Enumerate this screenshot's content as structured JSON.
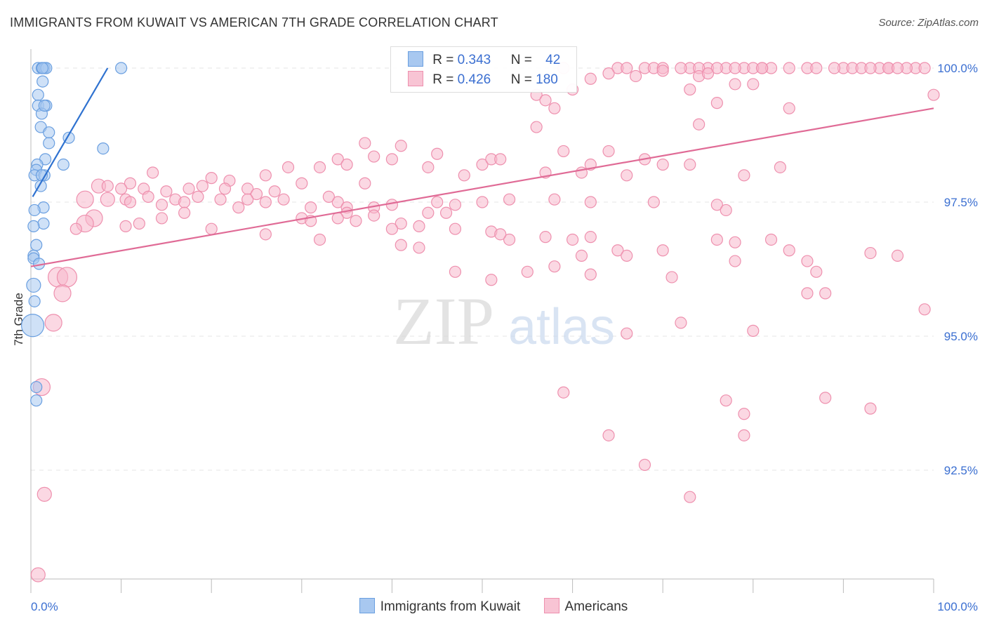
{
  "title": "IMMIGRANTS FROM KUWAIT VS AMERICAN 7TH GRADE CORRELATION CHART",
  "source": "Source: ZipAtlas.com",
  "watermark": {
    "zip": "ZIP",
    "atlas": "atlas"
  },
  "legend": {
    "r_label": "R = ",
    "n_label": "N = ",
    "series": [
      {
        "r": "0.343",
        "n": "42"
      },
      {
        "r": "0.426",
        "n": "180"
      }
    ]
  },
  "bottom_legend": [
    "Immigrants from Kuwait",
    "Americans"
  ],
  "colors": {
    "kuwait_fill": "#a8c8f0",
    "kuwait_stroke": "#6a9fe0",
    "kuwait_line": "#2f72d0",
    "american_fill": "#f8b8cc",
    "american_stroke": "#ee90ae",
    "american_line": "#e06b96",
    "tick_label": "#3b6fd1",
    "grid": "#e4e4e4"
  },
  "chart_data": {
    "type": "scatter",
    "ylabel": "7th Grade",
    "xlim": [
      0,
      100
    ],
    "ylim": [
      90.0,
      100.2
    ],
    "x_tick_labels": [
      {
        "x": 0,
        "label": "0.0%"
      },
      {
        "x": 100,
        "label": "100.0%"
      }
    ],
    "y_ticks": [
      {
        "y": 100.0,
        "label": "100.0%"
      },
      {
        "y": 97.5,
        "label": "97.5%"
      },
      {
        "y": 95.0,
        "label": "95.0%"
      },
      {
        "y": 92.5,
        "label": "92.5%"
      }
    ],
    "grid": true,
    "legend_position": "top-center",
    "series": [
      {
        "name": "Immigrants from Kuwait",
        "trend": [
          [
            0.2,
            97.6
          ],
          [
            8.5,
            100.0
          ]
        ],
        "points": [
          [
            0.8,
            100,
            8
          ],
          [
            1.2,
            100,
            8
          ],
          [
            1.5,
            100,
            8
          ],
          [
            1.7,
            100,
            8
          ],
          [
            1.3,
            100,
            8
          ],
          [
            10,
            100,
            8
          ],
          [
            1.3,
            99.75,
            8
          ],
          [
            0.8,
            99.5,
            8
          ],
          [
            0.8,
            99.3,
            8
          ],
          [
            1.7,
            99.3,
            8
          ],
          [
            1.2,
            99.15,
            8
          ],
          [
            1.5,
            99.3,
            8
          ],
          [
            1.1,
            98.9,
            8
          ],
          [
            2,
            98.8,
            8
          ],
          [
            4.2,
            98.7,
            8
          ],
          [
            2,
            98.6,
            8
          ],
          [
            8,
            98.5,
            8
          ],
          [
            1.6,
            98.3,
            8
          ],
          [
            0.7,
            98.2,
            8
          ],
          [
            3.6,
            98.2,
            8
          ],
          [
            0.6,
            98.1,
            8
          ],
          [
            0.4,
            98.0,
            8
          ],
          [
            1.5,
            98.0,
            8
          ],
          [
            1.2,
            98.0,
            8
          ],
          [
            1.1,
            97.8,
            8
          ],
          [
            1.4,
            97.4,
            8
          ],
          [
            0.4,
            97.35,
            8
          ],
          [
            1.4,
            97.1,
            8
          ],
          [
            0.3,
            97.05,
            8
          ],
          [
            0.6,
            96.7,
            8
          ],
          [
            0.3,
            96.5,
            8
          ],
          [
            0.3,
            96.45,
            8
          ],
          [
            0.9,
            96.35,
            8
          ],
          [
            0.3,
            95.95,
            10
          ],
          [
            0.4,
            95.65,
            8
          ],
          [
            0.2,
            95.2,
            16
          ],
          [
            0.6,
            94.05,
            8
          ],
          [
            0.6,
            93.8,
            8
          ]
        ]
      },
      {
        "name": "Americans",
        "trend": [
          [
            0,
            96.3
          ],
          [
            100,
            99.25
          ]
        ],
        "points": [
          [
            59,
            100,
            8
          ],
          [
            65,
            100,
            8
          ],
          [
            68,
            100,
            8
          ],
          [
            75,
            100,
            8
          ],
          [
            77,
            100,
            8
          ],
          [
            79,
            100,
            8
          ],
          [
            81,
            100,
            8
          ],
          [
            82,
            100,
            8
          ],
          [
            84,
            100,
            8
          ],
          [
            86,
            100,
            8
          ],
          [
            90,
            100,
            8
          ],
          [
            91,
            100,
            8
          ],
          [
            94,
            100,
            8
          ],
          [
            95,
            100,
            8
          ],
          [
            98,
            100,
            8
          ],
          [
            99,
            100,
            8
          ],
          [
            92,
            100,
            8
          ],
          [
            95,
            100,
            8
          ],
          [
            97,
            100,
            8
          ],
          [
            87,
            100,
            8
          ],
          [
            80,
            100,
            8
          ],
          [
            73,
            100,
            8
          ],
          [
            69,
            100,
            8
          ],
          [
            66,
            100,
            8
          ],
          [
            74,
            100,
            8
          ],
          [
            72,
            100,
            8
          ],
          [
            70,
            100,
            8
          ],
          [
            76,
            100,
            8
          ],
          [
            78,
            100,
            8
          ],
          [
            81,
            100,
            8
          ],
          [
            89,
            100,
            8
          ],
          [
            93,
            100,
            8
          ],
          [
            96,
            100,
            8
          ],
          [
            70,
            99.95,
            8
          ],
          [
            64,
            99.9,
            8
          ],
          [
            67,
            99.85,
            8
          ],
          [
            74,
            99.85,
            8
          ],
          [
            75,
            99.9,
            8
          ],
          [
            62,
            99.8,
            8
          ],
          [
            78,
            99.7,
            8
          ],
          [
            80,
            99.7,
            8
          ],
          [
            73,
            99.6,
            8
          ],
          [
            60,
            99.6,
            8
          ],
          [
            100,
            99.5,
            8
          ],
          [
            56,
            99.5,
            8
          ],
          [
            57,
            99.4,
            8
          ],
          [
            76,
            99.35,
            8
          ],
          [
            84,
            99.25,
            8
          ],
          [
            58,
            99.25,
            8
          ],
          [
            74,
            98.95,
            8
          ],
          [
            56,
            98.9,
            8
          ],
          [
            37,
            98.6,
            8
          ],
          [
            41,
            98.55,
            8
          ],
          [
            45,
            98.4,
            8
          ],
          [
            50,
            98.2,
            8
          ],
          [
            38,
            98.35,
            8
          ],
          [
            40,
            98.3,
            8
          ],
          [
            51,
            98.3,
            8
          ],
          [
            34,
            98.3,
            8
          ],
          [
            35,
            98.2,
            8
          ],
          [
            44,
            98.15,
            8
          ],
          [
            32,
            98.15,
            8
          ],
          [
            52,
            98.3,
            8
          ],
          [
            59,
            98.45,
            8
          ],
          [
            64,
            98.45,
            8
          ],
          [
            68,
            98.3,
            8
          ],
          [
            70,
            98.2,
            8
          ],
          [
            62,
            98.2,
            8
          ],
          [
            61,
            98.05,
            8
          ],
          [
            28.5,
            98.15,
            8
          ],
          [
            26,
            98.0,
            8
          ],
          [
            13.5,
            98.05,
            8
          ],
          [
            20,
            97.95,
            8
          ],
          [
            22,
            97.9,
            8
          ],
          [
            48,
            98.0,
            8
          ],
          [
            57,
            98.05,
            8
          ],
          [
            66,
            98.0,
            8
          ],
          [
            83,
            98.15,
            8
          ],
          [
            79,
            98.0,
            8
          ],
          [
            73,
            98.2,
            8
          ],
          [
            30,
            97.85,
            8
          ],
          [
            37,
            97.85,
            8
          ],
          [
            11,
            97.85,
            8
          ],
          [
            7.5,
            97.8,
            10
          ],
          [
            8.5,
            97.8,
            8
          ],
          [
            10,
            97.75,
            8
          ],
          [
            12.5,
            97.75,
            8
          ],
          [
            15,
            97.7,
            8
          ],
          [
            17.5,
            97.75,
            8
          ],
          [
            19,
            97.8,
            8
          ],
          [
            21.5,
            97.75,
            8
          ],
          [
            24,
            97.75,
            8
          ],
          [
            25,
            97.65,
            8
          ],
          [
            27,
            97.7,
            8
          ],
          [
            28,
            97.55,
            8
          ],
          [
            26,
            97.5,
            8
          ],
          [
            24,
            97.55,
            8
          ],
          [
            21,
            97.55,
            8
          ],
          [
            18.5,
            97.6,
            8
          ],
          [
            16,
            97.55,
            8
          ],
          [
            13,
            97.6,
            8
          ],
          [
            10.5,
            97.55,
            8
          ],
          [
            8.5,
            97.55,
            10
          ],
          [
            6,
            97.55,
            12
          ],
          [
            11,
            97.5,
            8
          ],
          [
            14.5,
            97.45,
            8
          ],
          [
            17,
            97.5,
            8
          ],
          [
            34,
            97.5,
            8
          ],
          [
            33,
            97.6,
            8
          ],
          [
            31,
            97.4,
            8
          ],
          [
            35,
            97.4,
            8
          ],
          [
            38,
            97.4,
            8
          ],
          [
            40,
            97.45,
            8
          ],
          [
            45,
            97.5,
            8
          ],
          [
            47,
            97.45,
            8
          ],
          [
            50,
            97.5,
            8
          ],
          [
            53,
            97.55,
            8
          ],
          [
            58,
            97.55,
            8
          ],
          [
            62,
            97.5,
            8
          ],
          [
            69,
            97.5,
            8
          ],
          [
            76,
            97.45,
            8
          ],
          [
            77,
            97.35,
            8
          ],
          [
            35,
            97.3,
            8
          ],
          [
            38,
            97.25,
            8
          ],
          [
            44,
            97.3,
            8
          ],
          [
            46,
            97.3,
            8
          ],
          [
            30,
            97.2,
            8
          ],
          [
            31,
            97.15,
            8
          ],
          [
            34,
            97.2,
            8
          ],
          [
            36,
            97.15,
            8
          ],
          [
            41,
            97.1,
            8
          ],
          [
            43,
            97.05,
            8
          ],
          [
            23,
            97.4,
            8
          ],
          [
            17,
            97.3,
            8
          ],
          [
            14.5,
            97.2,
            8
          ],
          [
            12,
            97.1,
            8
          ],
          [
            10.5,
            97.05,
            8
          ],
          [
            7,
            97.2,
            12
          ],
          [
            6,
            97.1,
            12
          ],
          [
            5,
            97.0,
            8
          ],
          [
            20,
            97.0,
            8
          ],
          [
            26,
            96.9,
            8
          ],
          [
            40,
            97.0,
            8
          ],
          [
            47,
            97.0,
            8
          ],
          [
            51,
            96.95,
            8
          ],
          [
            53,
            96.8,
            8
          ],
          [
            60,
            96.8,
            8
          ],
          [
            57,
            96.85,
            8
          ],
          [
            62,
            96.85,
            8
          ],
          [
            65,
            96.6,
            8
          ],
          [
            66,
            96.5,
            8
          ],
          [
            70,
            96.6,
            8
          ],
          [
            76,
            96.8,
            8
          ],
          [
            78,
            96.75,
            8
          ],
          [
            82,
            96.8,
            8
          ],
          [
            84,
            96.6,
            8
          ],
          [
            86,
            96.4,
            8
          ],
          [
            87,
            96.2,
            8
          ],
          [
            93,
            96.55,
            8
          ],
          [
            96,
            96.5,
            8
          ],
          [
            61,
            96.5,
            8
          ],
          [
            58,
            96.3,
            8
          ],
          [
            55,
            96.2,
            8
          ],
          [
            62,
            96.15,
            8
          ],
          [
            78,
            96.4,
            8
          ],
          [
            71,
            96.1,
            8
          ],
          [
            51,
            96.05,
            8
          ],
          [
            47,
            96.2,
            8
          ],
          [
            32,
            96.8,
            8
          ],
          [
            41,
            96.7,
            8
          ],
          [
            43,
            96.65,
            8
          ],
          [
            52,
            96.9,
            8
          ],
          [
            86,
            95.8,
            8
          ],
          [
            88,
            95.8,
            8
          ],
          [
            3,
            96.1,
            14
          ],
          [
            4,
            96.1,
            14
          ],
          [
            3.5,
            95.8,
            12
          ],
          [
            2.5,
            95.25,
            12
          ],
          [
            80,
            95.1,
            8
          ],
          [
            66,
            95.05,
            8
          ],
          [
            72,
            95.25,
            8
          ],
          [
            99,
            95.5,
            8
          ],
          [
            1.2,
            94.05,
            12
          ],
          [
            59,
            93.95,
            8
          ],
          [
            77,
            93.8,
            8
          ],
          [
            88,
            93.85,
            8
          ],
          [
            93,
            93.65,
            8
          ],
          [
            79,
            93.55,
            8
          ],
          [
            64,
            93.15,
            8
          ],
          [
            79,
            93.15,
            8
          ],
          [
            68,
            92.6,
            8
          ],
          [
            73,
            92.0,
            8
          ],
          [
            1.5,
            92.05,
            10
          ],
          [
            0.8,
            90.55,
            10
          ]
        ]
      }
    ]
  }
}
